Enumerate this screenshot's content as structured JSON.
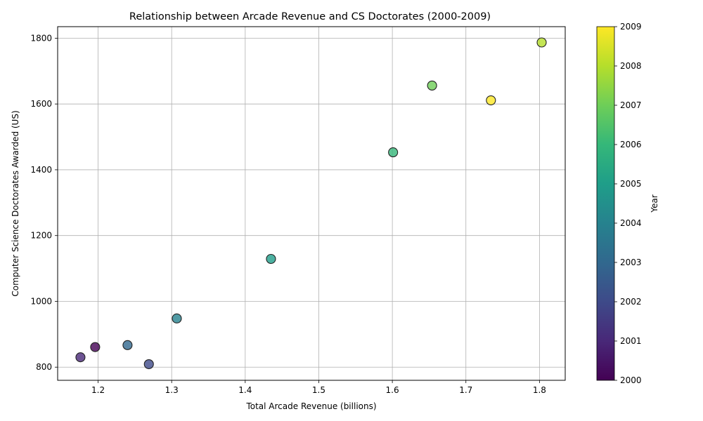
{
  "chart_data": {
    "type": "scatter",
    "title": "Relationship between Arcade Revenue and CS Doctorates (2000-2009)",
    "xlabel": "Total Arcade Revenue (billions)",
    "ylabel": "Computer Science Doctorates Awarded (US)",
    "xlim": [
      1.145,
      1.835
    ],
    "ylim": [
      760,
      1835
    ],
    "xticks": [
      "1.2",
      "1.3",
      "1.4",
      "1.5",
      "1.6",
      "1.7",
      "1.8"
    ],
    "yticks": [
      "800",
      "1000",
      "1200",
      "1400",
      "1600",
      "1800"
    ],
    "grid": true,
    "colorbar": {
      "label": "Year",
      "range": [
        2000,
        2009
      ],
      "ticks": [
        "2000",
        "2001",
        "2002",
        "2003",
        "2004",
        "2005",
        "2006",
        "2007",
        "2008",
        "2009"
      ],
      "colormap": "viridis"
    },
    "points": [
      {
        "year": 2000,
        "x": 1.196,
        "y": 861
      },
      {
        "year": 2001,
        "x": 1.176,
        "y": 830
      },
      {
        "year": 2002,
        "x": 1.269,
        "y": 809
      },
      {
        "year": 2003,
        "x": 1.24,
        "y": 867
      },
      {
        "year": 2004,
        "x": 1.307,
        "y": 948
      },
      {
        "year": 2005,
        "x": 1.435,
        "y": 1129
      },
      {
        "year": 2006,
        "x": 1.601,
        "y": 1453
      },
      {
        "year": 2007,
        "x": 1.654,
        "y": 1656
      },
      {
        "year": 2008,
        "x": 1.803,
        "y": 1787
      },
      {
        "year": 2009,
        "x": 1.734,
        "y": 1611
      }
    ]
  }
}
